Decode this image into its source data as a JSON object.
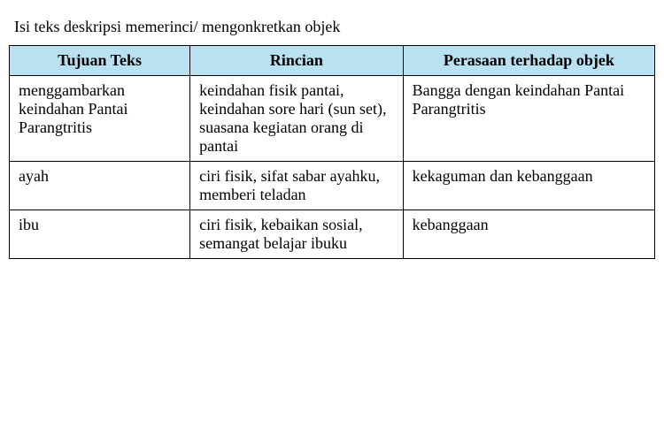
{
  "caption": "Isi teks deskripsi memerinci/ mengonkretkan objek",
  "table": {
    "header_bg_color": "#bae1f2",
    "border_color": "#000000",
    "columns": [
      {
        "label": "Tujuan Teks",
        "width": "28%"
      },
      {
        "label": "Rincian",
        "width": "33%"
      },
      {
        "label": "Perasaan terhadap objek",
        "width": "39%"
      }
    ],
    "rows": [
      {
        "tujuan": "menggambarkan keindahan Pantai Parangtritis",
        "rincian": "keindahan fisik pantai, keindahan sore hari (sun set), suasana kegiatan orang di pantai",
        "perasaan": "Bangga dengan keindahan Pantai Parangtritis"
      },
      {
        "tujuan": "ayah",
        "rincian": "ciri fisik, sifat sabar ayahku, memberi teladan",
        "perasaan": "kekaguman dan kebanggaan"
      },
      {
        "tujuan": "ibu",
        "rincian": "ciri fisik, kebaikan sosial, semangat belajar ibuku",
        "perasaan": "kebanggaan"
      }
    ]
  }
}
